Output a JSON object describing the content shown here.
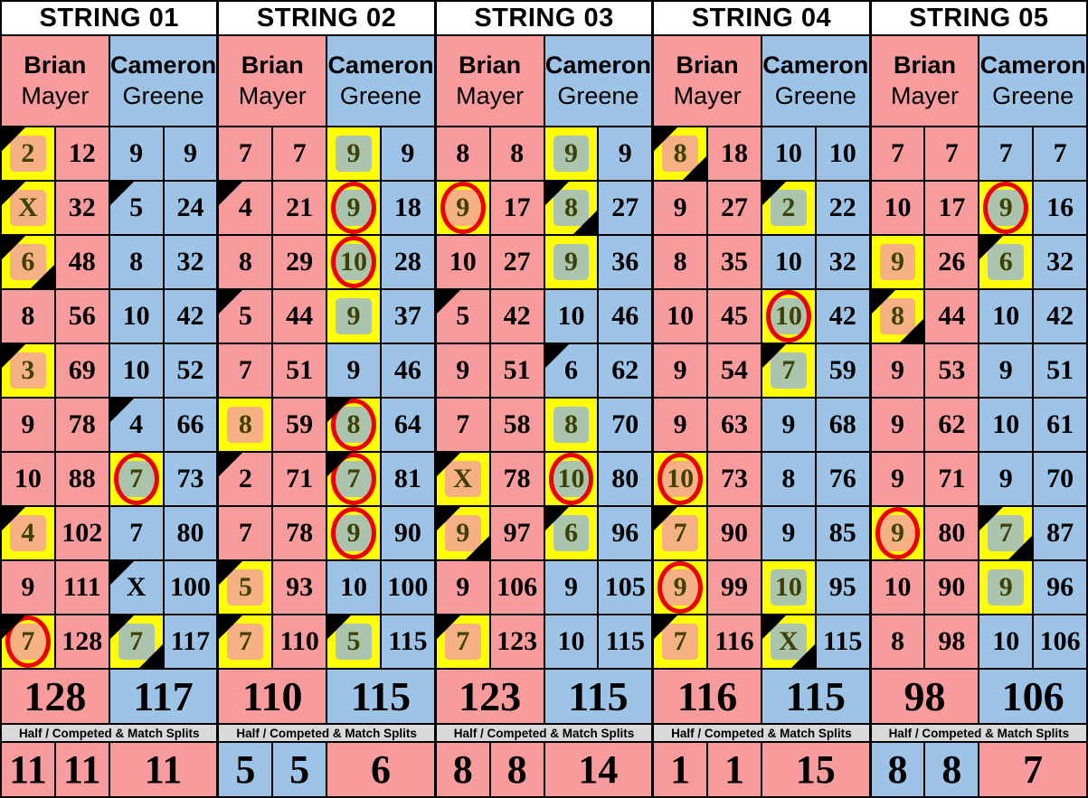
{
  "colors": {
    "pink": "#F79B9D",
    "blue": "#9DC3E6",
    "orange": "#F5B183",
    "green": "#ABC5AC",
    "yellow": "#FFFF00",
    "red": "#EE0000",
    "gray": "#D9D9D9",
    "olive": "#3F4005",
    "header_bg": "#FFFFFF",
    "border": "#000000"
  },
  "labels": {
    "splits": "Half / Competed & Match Splits"
  },
  "strings": [
    {
      "label": "STRING 01",
      "players": [
        {
          "first": "Brian",
          "last": "Mayer",
          "color": "pink",
          "total": "128",
          "frames": [
            {
              "ball": "2",
              "cum": "12",
              "marks": "box tl"
            },
            {
              "ball": "X",
              "cum": "32",
              "marks": "box tl"
            },
            {
              "ball": "6",
              "cum": "48",
              "marks": "box tl br"
            },
            {
              "ball": "8",
              "cum": "56",
              "marks": ""
            },
            {
              "ball": "3",
              "cum": "69",
              "marks": "box tl"
            },
            {
              "ball": "9",
              "cum": "78",
              "marks": ""
            },
            {
              "ball": "10",
              "cum": "88",
              "marks": ""
            },
            {
              "ball": "4",
              "cum": "102",
              "marks": "box tl"
            },
            {
              "ball": "9",
              "cum": "111",
              "marks": ""
            },
            {
              "ball": "7",
              "cum": "128",
              "marks": "box circle tl"
            }
          ]
        },
        {
          "first": "Cameron",
          "last": "Greene",
          "color": "blue",
          "total": "117",
          "frames": [
            {
              "ball": "9",
              "cum": "9",
              "marks": ""
            },
            {
              "ball": "5",
              "cum": "24",
              "marks": "tl"
            },
            {
              "ball": "8",
              "cum": "32",
              "marks": ""
            },
            {
              "ball": "10",
              "cum": "42",
              "marks": ""
            },
            {
              "ball": "10",
              "cum": "52",
              "marks": ""
            },
            {
              "ball": "4",
              "cum": "66",
              "marks": "tl"
            },
            {
              "ball": "7",
              "cum": "73",
              "marks": "box circle"
            },
            {
              "ball": "7",
              "cum": "80",
              "marks": ""
            },
            {
              "ball": "X",
              "cum": "100",
              "marks": "tl"
            },
            {
              "ball": "7",
              "cum": "117",
              "marks": "box tl br"
            }
          ]
        }
      ],
      "bottom": [
        {
          "value": "11",
          "color": "pink"
        },
        {
          "value": "11",
          "color": "pink"
        },
        {
          "value": "11",
          "color": "pink"
        }
      ]
    },
    {
      "label": "STRING 02",
      "players": [
        {
          "first": "Brian",
          "last": "Mayer",
          "color": "pink",
          "total": "110",
          "frames": [
            {
              "ball": "7",
              "cum": "7",
              "marks": ""
            },
            {
              "ball": "4",
              "cum": "21",
              "marks": "tl"
            },
            {
              "ball": "8",
              "cum": "29",
              "marks": ""
            },
            {
              "ball": "5",
              "cum": "44",
              "marks": "tl"
            },
            {
              "ball": "7",
              "cum": "51",
              "marks": ""
            },
            {
              "ball": "8",
              "cum": "59",
              "marks": "box"
            },
            {
              "ball": "2",
              "cum": "71",
              "marks": "tl"
            },
            {
              "ball": "7",
              "cum": "78",
              "marks": ""
            },
            {
              "ball": "5",
              "cum": "93",
              "marks": "box tl"
            },
            {
              "ball": "7",
              "cum": "110",
              "marks": "box tl"
            }
          ]
        },
        {
          "first": "Cameron",
          "last": "Greene",
          "color": "blue",
          "total": "115",
          "frames": [
            {
              "ball": "9",
              "cum": "9",
              "marks": "box"
            },
            {
              "ball": "9",
              "cum": "18",
              "marks": "box circle"
            },
            {
              "ball": "10",
              "cum": "28",
              "marks": "box circle"
            },
            {
              "ball": "9",
              "cum": "37",
              "marks": "box"
            },
            {
              "ball": "9",
              "cum": "46",
              "marks": ""
            },
            {
              "ball": "8",
              "cum": "64",
              "marks": "box circle tl"
            },
            {
              "ball": "7",
              "cum": "81",
              "marks": "box circle tl"
            },
            {
              "ball": "9",
              "cum": "90",
              "marks": "box circle"
            },
            {
              "ball": "10",
              "cum": "100",
              "marks": ""
            },
            {
              "ball": "5",
              "cum": "115",
              "marks": "box tl"
            }
          ]
        }
      ],
      "bottom": [
        {
          "value": "5",
          "color": "blue"
        },
        {
          "value": "5",
          "color": "blue"
        },
        {
          "value": "6",
          "color": "pink"
        }
      ]
    },
    {
      "label": "STRING 03",
      "players": [
        {
          "first": "Brian",
          "last": "Mayer",
          "color": "pink",
          "total": "123",
          "frames": [
            {
              "ball": "8",
              "cum": "8",
              "marks": ""
            },
            {
              "ball": "9",
              "cum": "17",
              "marks": "box circle"
            },
            {
              "ball": "10",
              "cum": "27",
              "marks": ""
            },
            {
              "ball": "5",
              "cum": "42",
              "marks": "tl"
            },
            {
              "ball": "9",
              "cum": "51",
              "marks": ""
            },
            {
              "ball": "7",
              "cum": "58",
              "marks": ""
            },
            {
              "ball": "X",
              "cum": "78",
              "marks": "box tl"
            },
            {
              "ball": "9",
              "cum": "97",
              "marks": "box tl br"
            },
            {
              "ball": "9",
              "cum": "106",
              "marks": ""
            },
            {
              "ball": "7",
              "cum": "123",
              "marks": "box tl"
            }
          ]
        },
        {
          "first": "Cameron",
          "last": "Greene",
          "color": "blue",
          "total": "115",
          "frames": [
            {
              "ball": "9",
              "cum": "9",
              "marks": "box"
            },
            {
              "ball": "8",
              "cum": "27",
              "marks": "box tl br"
            },
            {
              "ball": "9",
              "cum": "36",
              "marks": "box"
            },
            {
              "ball": "10",
              "cum": "46",
              "marks": ""
            },
            {
              "ball": "6",
              "cum": "62",
              "marks": "tl"
            },
            {
              "ball": "8",
              "cum": "70",
              "marks": "box"
            },
            {
              "ball": "10",
              "cum": "80",
              "marks": "box circle"
            },
            {
              "ball": "6",
              "cum": "96",
              "marks": "box tl"
            },
            {
              "ball": "9",
              "cum": "105",
              "marks": ""
            },
            {
              "ball": "10",
              "cum": "115",
              "marks": ""
            }
          ]
        }
      ],
      "bottom": [
        {
          "value": "8",
          "color": "pink"
        },
        {
          "value": "8",
          "color": "pink"
        },
        {
          "value": "14",
          "color": "pink"
        }
      ]
    },
    {
      "label": "STRING 04",
      "players": [
        {
          "first": "Brian",
          "last": "Mayer",
          "color": "pink",
          "total": "116",
          "frames": [
            {
              "ball": "8",
              "cum": "18",
              "marks": "box tl br"
            },
            {
              "ball": "9",
              "cum": "27",
              "marks": ""
            },
            {
              "ball": "8",
              "cum": "35",
              "marks": ""
            },
            {
              "ball": "10",
              "cum": "45",
              "marks": ""
            },
            {
              "ball": "9",
              "cum": "54",
              "marks": ""
            },
            {
              "ball": "9",
              "cum": "63",
              "marks": ""
            },
            {
              "ball": "10",
              "cum": "73",
              "marks": "box circle"
            },
            {
              "ball": "7",
              "cum": "90",
              "marks": "box tl"
            },
            {
              "ball": "9",
              "cum": "99",
              "marks": "box circle"
            },
            {
              "ball": "7",
              "cum": "116",
              "marks": "box tl"
            }
          ]
        },
        {
          "first": "Cameron",
          "last": "Greene",
          "color": "blue",
          "total": "115",
          "frames": [
            {
              "ball": "10",
              "cum": "10",
              "marks": ""
            },
            {
              "ball": "2",
              "cum": "22",
              "marks": "box tl"
            },
            {
              "ball": "10",
              "cum": "32",
              "marks": ""
            },
            {
              "ball": "10",
              "cum": "42",
              "marks": "box circle"
            },
            {
              "ball": "7",
              "cum": "59",
              "marks": "box tl"
            },
            {
              "ball": "9",
              "cum": "68",
              "marks": ""
            },
            {
              "ball": "8",
              "cum": "76",
              "marks": ""
            },
            {
              "ball": "9",
              "cum": "85",
              "marks": ""
            },
            {
              "ball": "10",
              "cum": "95",
              "marks": "box"
            },
            {
              "ball": "X",
              "cum": "115",
              "marks": "box tl br"
            }
          ]
        }
      ],
      "bottom": [
        {
          "value": "1",
          "color": "pink"
        },
        {
          "value": "1",
          "color": "pink"
        },
        {
          "value": "15",
          "color": "pink"
        }
      ]
    },
    {
      "label": "STRING 05",
      "players": [
        {
          "first": "Brian",
          "last": "Mayer",
          "color": "pink",
          "total": "98",
          "frames": [
            {
              "ball": "7",
              "cum": "7",
              "marks": ""
            },
            {
              "ball": "10",
              "cum": "17",
              "marks": ""
            },
            {
              "ball": "9",
              "cum": "26",
              "marks": "box"
            },
            {
              "ball": "8",
              "cum": "44",
              "marks": "box tl br"
            },
            {
              "ball": "9",
              "cum": "53",
              "marks": ""
            },
            {
              "ball": "9",
              "cum": "62",
              "marks": ""
            },
            {
              "ball": "9",
              "cum": "71",
              "marks": ""
            },
            {
              "ball": "9",
              "cum": "80",
              "marks": "box circle"
            },
            {
              "ball": "10",
              "cum": "90",
              "marks": ""
            },
            {
              "ball": "8",
              "cum": "98",
              "marks": ""
            }
          ]
        },
        {
          "first": "Cameron",
          "last": "Greene",
          "color": "blue",
          "total": "106",
          "frames": [
            {
              "ball": "7",
              "cum": "7",
              "marks": ""
            },
            {
              "ball": "9",
              "cum": "16",
              "marks": "box circle"
            },
            {
              "ball": "6",
              "cum": "32",
              "marks": "box tl"
            },
            {
              "ball": "10",
              "cum": "42",
              "marks": ""
            },
            {
              "ball": "9",
              "cum": "51",
              "marks": ""
            },
            {
              "ball": "10",
              "cum": "61",
              "marks": ""
            },
            {
              "ball": "9",
              "cum": "70",
              "marks": ""
            },
            {
              "ball": "7",
              "cum": "87",
              "marks": "box tl br"
            },
            {
              "ball": "9",
              "cum": "96",
              "marks": "box"
            },
            {
              "ball": "10",
              "cum": "106",
              "marks": ""
            }
          ]
        }
      ],
      "bottom": [
        {
          "value": "8",
          "color": "blue"
        },
        {
          "value": "8",
          "color": "blue"
        },
        {
          "value": "7",
          "color": "pink"
        }
      ]
    }
  ]
}
